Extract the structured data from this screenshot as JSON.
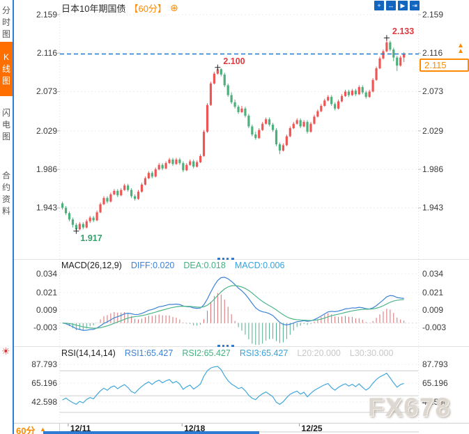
{
  "colors": {
    "up": "#ee5555",
    "down": "#4daf7c",
    "hist_up": "#dd6b6e",
    "hist_down": "#4fae8d",
    "diff": "#3c82d6",
    "dea": "#4db589",
    "rsi": "#41a7da",
    "price_line": "#1f7ad4",
    "accent": "#ff8a00",
    "toolbar_blue": "#1266c0",
    "sidebar_active": "#ff6f00",
    "marker_red": "#e0393f",
    "marker_green": "#35a06b"
  },
  "sidebar": {
    "items": [
      {
        "label": "分时图",
        "name": "sidebar-tab-time-chart",
        "active": false
      },
      {
        "label": "K线图",
        "name": "sidebar-tab-kline-chart",
        "active": true
      },
      {
        "label": "闪电图",
        "name": "sidebar-tab-flash-chart",
        "active": false
      },
      {
        "label": "合约资料",
        "name": "sidebar-tab-contract-info",
        "active": false
      }
    ]
  },
  "header": {
    "title": "日本10年期国债",
    "interval_tag": "【60分】",
    "add_icon_glyph": "⊕"
  },
  "toolbar": {
    "icons": [
      {
        "name": "move-crosshair-icon",
        "glyph": "+"
      },
      {
        "name": "zoom-range-icon",
        "glyph": "↔"
      },
      {
        "name": "go-latest-icon",
        "glyph": "▶"
      },
      {
        "name": "pan-right-icon",
        "glyph": "⇥"
      }
    ]
  },
  "footer": {
    "interval_label": "60分",
    "dropdown_icon": "▲"
  },
  "watermark": {
    "text": "FX678"
  },
  "sun_icon_glyph": "☀",
  "chart_data": {
    "type": "candlestick",
    "title": "日本10年期国债 60分 K线图",
    "price_axis_labels": [
      "2.159",
      "2.116",
      "2.073",
      "2.029",
      "1.986",
      "1.943"
    ],
    "x_ticks": [
      {
        "label": "12/11",
        "index": 2
      },
      {
        "label": "12/18",
        "index": 35
      },
      {
        "label": "12/25",
        "index": 69
      }
    ],
    "last_price": 2.115,
    "last_price_label": "2.115",
    "markers": {
      "low": {
        "index": 4,
        "price": 1.917,
        "label": "1.917"
      },
      "peak": {
        "index": 45,
        "price": 2.1,
        "label": "2.100"
      },
      "high": {
        "index": 94,
        "price": 2.133,
        "label": "2.133"
      }
    },
    "ohlc": [
      [
        1.948,
        1.95,
        1.941,
        1.943
      ],
      [
        1.943,
        1.945,
        1.935,
        1.937
      ],
      [
        1.937,
        1.939,
        1.928,
        1.93
      ],
      [
        1.93,
        1.932,
        1.921,
        1.924
      ],
      [
        1.924,
        1.926,
        1.917,
        1.919
      ],
      [
        1.919,
        1.927,
        1.918,
        1.925
      ],
      [
        1.925,
        1.927,
        1.919,
        1.921
      ],
      [
        1.921,
        1.93,
        1.92,
        1.928
      ],
      [
        1.928,
        1.934,
        1.926,
        1.932
      ],
      [
        1.932,
        1.934,
        1.927,
        1.929
      ],
      [
        1.929,
        1.94,
        1.928,
        1.938
      ],
      [
        1.938,
        1.949,
        1.937,
        1.947
      ],
      [
        1.947,
        1.956,
        1.946,
        1.954
      ],
      [
        1.954,
        1.956,
        1.948,
        1.95
      ],
      [
        1.95,
        1.96,
        1.949,
        1.958
      ],
      [
        1.958,
        1.964,
        1.957,
        1.962
      ],
      [
        1.962,
        1.964,
        1.955,
        1.957
      ],
      [
        1.957,
        1.965,
        1.956,
        1.963
      ],
      [
        1.963,
        1.97,
        1.962,
        1.968
      ],
      [
        1.968,
        1.97,
        1.961,
        1.963
      ],
      [
        1.963,
        1.965,
        1.954,
        1.956
      ],
      [
        1.956,
        1.958,
        1.951,
        1.953
      ],
      [
        1.953,
        1.963,
        1.952,
        1.961
      ],
      [
        1.961,
        1.971,
        1.96,
        1.969
      ],
      [
        1.969,
        1.978,
        1.968,
        1.976
      ],
      [
        1.976,
        1.984,
        1.975,
        1.982
      ],
      [
        1.982,
        1.984,
        1.976,
        1.978
      ],
      [
        1.978,
        1.988,
        1.977,
        1.986
      ],
      [
        1.986,
        1.993,
        1.985,
        1.991
      ],
      [
        1.991,
        1.993,
        1.985,
        1.987
      ],
      [
        1.987,
        1.995,
        1.986,
        1.993
      ],
      [
        1.993,
        1.999,
        1.992,
        1.997
      ],
      [
        1.997,
        1.999,
        1.99,
        1.992
      ],
      [
        1.992,
        1.999,
        1.991,
        1.997
      ],
      [
        1.997,
        1.999,
        1.991,
        1.993
      ],
      [
        1.993,
        1.995,
        1.983,
        1.985
      ],
      [
        1.985,
        1.993,
        1.984,
        1.991
      ],
      [
        1.991,
        1.997,
        1.99,
        1.995
      ],
      [
        1.995,
        1.997,
        1.987,
        1.989
      ],
      [
        1.989,
        1.996,
        1.988,
        1.994
      ],
      [
        1.994,
        2.003,
        1.993,
        2.001
      ],
      [
        2.001,
        2.03,
        2.0,
        2.028
      ],
      [
        2.028,
        2.06,
        2.027,
        2.058
      ],
      [
        2.058,
        2.084,
        2.057,
        2.082
      ],
      [
        2.082,
        2.095,
        2.081,
        2.093
      ],
      [
        2.093,
        2.1,
        2.092,
        2.098
      ],
      [
        2.098,
        2.099,
        2.09,
        2.092
      ],
      [
        2.092,
        2.094,
        2.078,
        2.08
      ],
      [
        2.08,
        2.082,
        2.067,
        2.069
      ],
      [
        2.069,
        2.072,
        2.059,
        2.061
      ],
      [
        2.061,
        2.064,
        2.054,
        2.056
      ],
      [
        2.056,
        2.058,
        2.048,
        2.05
      ],
      [
        2.05,
        2.057,
        2.049,
        2.054
      ],
      [
        2.054,
        2.056,
        2.044,
        2.046
      ],
      [
        2.046,
        2.048,
        2.032,
        2.034
      ],
      [
        2.034,
        2.036,
        2.023,
        2.025
      ],
      [
        2.025,
        2.028,
        2.019,
        2.021
      ],
      [
        2.021,
        2.032,
        2.02,
        2.03
      ],
      [
        2.03,
        2.039,
        2.029,
        2.037
      ],
      [
        2.037,
        2.044,
        2.036,
        2.042
      ],
      [
        2.042,
        2.044,
        2.034,
        2.036
      ],
      [
        2.036,
        2.038,
        2.028,
        2.03
      ],
      [
        2.03,
        2.032,
        2.012,
        2.014
      ],
      [
        2.014,
        2.016,
        2.003,
        2.007
      ],
      [
        2.007,
        2.015,
        2.006,
        2.013
      ],
      [
        2.013,
        2.025,
        2.012,
        2.023
      ],
      [
        2.023,
        2.034,
        2.022,
        2.032
      ],
      [
        2.032,
        2.039,
        2.031,
        2.037
      ],
      [
        2.037,
        2.043,
        2.036,
        2.041
      ],
      [
        2.041,
        2.043,
        2.032,
        2.034
      ],
      [
        2.034,
        2.041,
        2.033,
        2.039
      ],
      [
        2.039,
        2.041,
        2.026,
        2.028
      ],
      [
        2.028,
        2.039,
        2.027,
        2.037
      ],
      [
        2.037,
        2.047,
        2.036,
        2.045
      ],
      [
        2.045,
        2.053,
        2.044,
        2.051
      ],
      [
        2.051,
        2.059,
        2.05,
        2.057
      ],
      [
        2.057,
        2.065,
        2.056,
        2.063
      ],
      [
        2.063,
        2.069,
        2.062,
        2.067
      ],
      [
        2.067,
        2.069,
        2.057,
        2.059
      ],
      [
        2.059,
        2.061,
        2.052,
        2.054
      ],
      [
        2.054,
        2.064,
        2.053,
        2.062
      ],
      [
        2.062,
        2.07,
        2.061,
        2.068
      ],
      [
        2.068,
        2.075,
        2.067,
        2.073
      ],
      [
        2.073,
        2.075,
        2.067,
        2.069
      ],
      [
        2.069,
        2.076,
        2.068,
        2.074
      ],
      [
        2.074,
        2.076,
        2.068,
        2.07
      ],
      [
        2.07,
        2.08,
        2.069,
        2.078
      ],
      [
        2.078,
        2.08,
        2.07,
        2.072
      ],
      [
        2.072,
        2.074,
        2.065,
        2.067
      ],
      [
        2.067,
        2.075,
        2.066,
        2.073
      ],
      [
        2.073,
        2.088,
        2.072,
        2.086
      ],
      [
        2.086,
        2.101,
        2.085,
        2.099
      ],
      [
        2.099,
        2.112,
        2.098,
        2.11
      ],
      [
        2.11,
        2.12,
        2.109,
        2.118
      ],
      [
        2.118,
        2.133,
        2.117,
        2.128
      ],
      [
        2.128,
        2.13,
        2.118,
        2.12
      ],
      [
        2.12,
        2.122,
        2.107,
        2.111
      ],
      [
        2.111,
        2.113,
        2.096,
        2.102
      ],
      [
        2.102,
        2.113,
        2.101,
        2.111
      ],
      [
        2.111,
        2.117,
        2.106,
        2.115
      ]
    ],
    "indicators": {
      "macd": {
        "title": "MACD(26,12,9)",
        "readout": {
          "diff": "DIFF:0.020",
          "dea": "DEA:0.018",
          "macd": "MACD:0.006"
        },
        "axis_labels": [
          "0.034",
          "0.021",
          "0.009",
          "-0.003"
        ]
      },
      "rsi": {
        "title": "RSI(14,14,14)",
        "readout": {
          "rsi1": "RSI1:65.427",
          "rsi2": "RSI2:65.427",
          "rsi3": "RSI3:65.427",
          "l20": "L20:20.000",
          "l30": "L30:30.000"
        },
        "axis_labels": [
          "87.793",
          "65.196",
          "42.598"
        ],
        "guides": [
          80,
          50,
          30
        ]
      }
    }
  }
}
